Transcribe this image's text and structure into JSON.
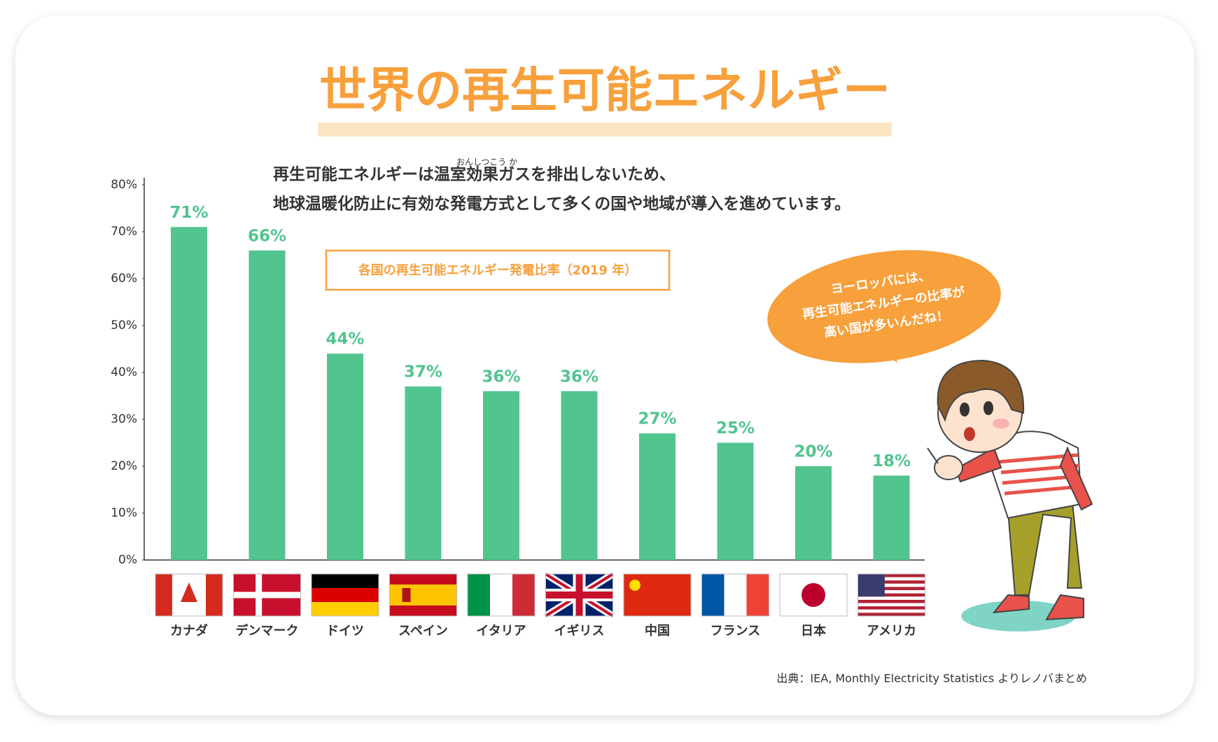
{
  "chart_data": {
    "type": "bar",
    "title": "世界の再生可能エネルギー",
    "description": [
      "再生可能エネルギーは温室効果ガスを排出しないため、",
      "地球温暖化防止に有効な発電方式として多くの国や地域が導入を進めています。"
    ],
    "ruby": "おんしつこう か",
    "subtitle": "各国の再生可能エネルギー発電比率（2019 年）",
    "annotation": [
      "ヨーロッパには、",
      "再生可能エネルギーの比率が",
      "高い国が多いんだね！"
    ],
    "source": "出典：IEA, Monthly Electricity Statistics よりレノバまとめ",
    "categories": [
      "カナダ",
      "デンマーク",
      "ドイツ",
      "スペイン",
      "イタリア",
      "イギリス",
      "中国",
      "フランス",
      "日本",
      "アメリカ"
    ],
    "values": [
      71,
      66,
      44,
      37,
      36,
      36,
      27,
      25,
      20,
      18
    ],
    "value_labels": [
      "71%",
      "66%",
      "44%",
      "37%",
      "36%",
      "36%",
      "27%",
      "25%",
      "20%",
      "18%"
    ],
    "color": "#52c48e",
    "ylim": [
      0,
      80
    ],
    "yticks": [
      {
        "value": 0,
        "label": "0%"
      },
      {
        "value": 10,
        "label": "10%"
      },
      {
        "value": 20,
        "label": "20%"
      },
      {
        "value": 30,
        "label": "30%"
      },
      {
        "value": 40,
        "label": "40%"
      },
      {
        "value": 50,
        "label": "50%"
      },
      {
        "value": 60,
        "label": "60%"
      },
      {
        "value": 70,
        "label": "70%"
      },
      {
        "value": 80,
        "label": "80%"
      }
    ]
  }
}
